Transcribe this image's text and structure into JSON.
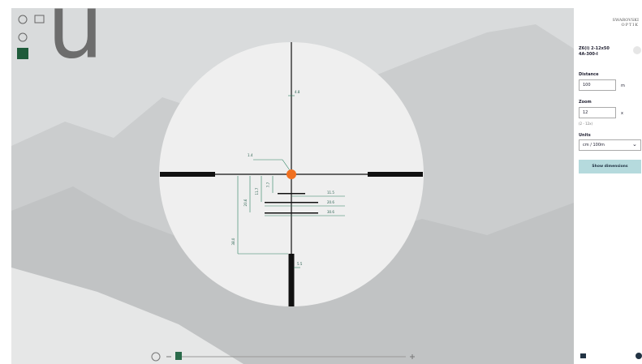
{
  "overlay_glyph": "u",
  "logo": {
    "brand": "SWAROVSKI",
    "sub": "OPTIK"
  },
  "product": {
    "model": "Z6(i) 2-12x50",
    "reticle": "4A-300-I"
  },
  "form": {
    "distance": {
      "label": "Distance",
      "value": "100",
      "unit": "m"
    },
    "zoom": {
      "label": "Zoom",
      "value": "12",
      "unit": "x",
      "hint": "(2 - 12x)"
    },
    "units": {
      "label": "Units",
      "value": "cm / 100m"
    },
    "button": "Show dimensions"
  },
  "reticle_labels": {
    "top_gap": "4.8",
    "center": "1.4",
    "h1": "11.5",
    "h2": "20.6",
    "h3": "30.6",
    "v1": "7.7",
    "v2": "11.7",
    "v3": "20.6",
    "v4": "38.0",
    "post": "5.5"
  }
}
